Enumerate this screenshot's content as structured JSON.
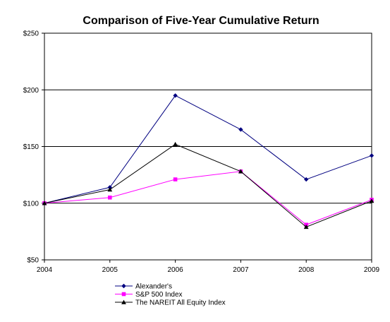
{
  "chart_data": {
    "type": "line",
    "title": "Comparison of Five-Year Cumulative Return",
    "xlabel": "",
    "ylabel": "",
    "x": [
      "2004",
      "2005",
      "2006",
      "2007",
      "2008",
      "2009"
    ],
    "ylim": [
      50,
      250
    ],
    "yticks": [
      50,
      100,
      150,
      200,
      250
    ],
    "ytick_labels": [
      "$50",
      "$100",
      "$150",
      "$200",
      "$250"
    ],
    "grid": "horizontal",
    "legend_position": "bottom-left",
    "series": [
      {
        "name": "Alexander's",
        "values": [
          100,
          114,
          195,
          165,
          121,
          142
        ],
        "color": "#000080",
        "marker": "diamond"
      },
      {
        "name": "S&P 500 Index",
        "values": [
          100,
          105,
          121,
          128,
          81,
          103
        ],
        "color": "#ff00ff",
        "marker": "square"
      },
      {
        "name": "The NAREIT All Equity Index",
        "values": [
          100,
          112,
          152,
          128,
          79,
          102
        ],
        "color": "#000000",
        "marker": "triangle"
      }
    ]
  }
}
